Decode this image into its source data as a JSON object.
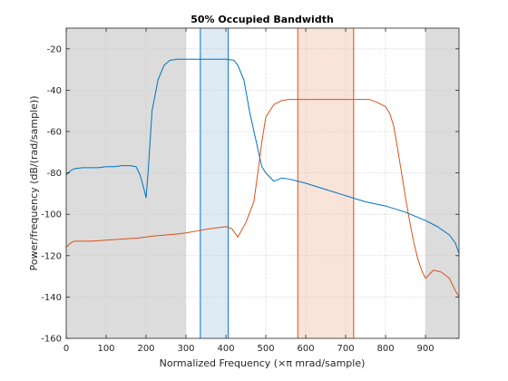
{
  "chart_data": {
    "type": "line",
    "title": "50% Occupied Bandwidth",
    "xlabel": "Normalized Frequency  (×π mrad/sample)",
    "ylabel": "Power/frequency (dB/(rad/sample))",
    "xlim": [
      0,
      984
    ],
    "ylim": [
      -160,
      -10
    ],
    "xticks": [
      0,
      100,
      200,
      300,
      400,
      500,
      600,
      700,
      800,
      900
    ],
    "yticks": [
      -160,
      -140,
      -120,
      -100,
      -80,
      -60,
      -40,
      -20
    ],
    "grid": true,
    "shaded_regions": [
      {
        "x0": 0,
        "x1": 300,
        "color": "#dcdcdc"
      },
      {
        "x0": 900,
        "x1": 984,
        "color": "#dcdcdc"
      },
      {
        "x0": 336,
        "x1": 406,
        "color": "#deebf5",
        "edge": "#0072bd"
      },
      {
        "x0": 580,
        "x1": 720,
        "color": "#f9e4da",
        "edge": "#d95319"
      }
    ],
    "series": [
      {
        "color": "#0072bd",
        "x": [
          0,
          10,
          20,
          40,
          60,
          80,
          100,
          120,
          140,
          160,
          175,
          185,
          195,
          200,
          205,
          215,
          230,
          245,
          260,
          280,
          300,
          330,
          360,
          400,
          420,
          430,
          445,
          460,
          475,
          490,
          500,
          520,
          540,
          560,
          580,
          600,
          650,
          700,
          750,
          800,
          850,
          900,
          930,
          960,
          975,
          984
        ],
        "y": [
          -81,
          -79,
          -78,
          -77.5,
          -77.5,
          -77.5,
          -77,
          -77,
          -76.5,
          -76.5,
          -77,
          -81,
          -88,
          -92,
          -80,
          -50,
          -35,
          -28,
          -25.5,
          -25,
          -25,
          -25,
          -25,
          -25,
          -25.5,
          -28,
          -35,
          -51,
          -64,
          -77,
          -80,
          -84,
          -82.5,
          -83,
          -84,
          -85,
          -88,
          -91,
          -94,
          -96,
          -99,
          -103,
          -106,
          -110,
          -114,
          -119
        ]
      },
      {
        "color": "#d95319",
        "x": [
          0,
          10,
          20,
          60,
          100,
          140,
          180,
          200,
          220,
          250,
          280,
          300,
          330,
          360,
          380,
          400,
          415,
          430,
          450,
          470,
          480,
          490,
          500,
          520,
          540,
          560,
          580,
          600,
          650,
          700,
          740,
          760,
          780,
          800,
          810,
          820,
          830,
          840,
          850,
          860,
          870,
          880,
          890,
          900,
          920,
          940,
          960,
          975,
          984
        ],
        "y": [
          -116,
          -114,
          -113,
          -113,
          -112.5,
          -112,
          -111.5,
          -111,
          -110.5,
          -110,
          -109.5,
          -109,
          -108,
          -107,
          -106.5,
          -106,
          -107,
          -111,
          -104,
          -94,
          -80,
          -65,
          -53,
          -47,
          -45,
          -44.5,
          -44.5,
          -44.5,
          -44.5,
          -44.5,
          -44.5,
          -44.5,
          -46,
          -48,
          -51,
          -57,
          -68,
          -80,
          -92,
          -103,
          -113,
          -121,
          -127,
          -131,
          -127,
          -128,
          -131,
          -137,
          -140
        ]
      }
    ]
  }
}
